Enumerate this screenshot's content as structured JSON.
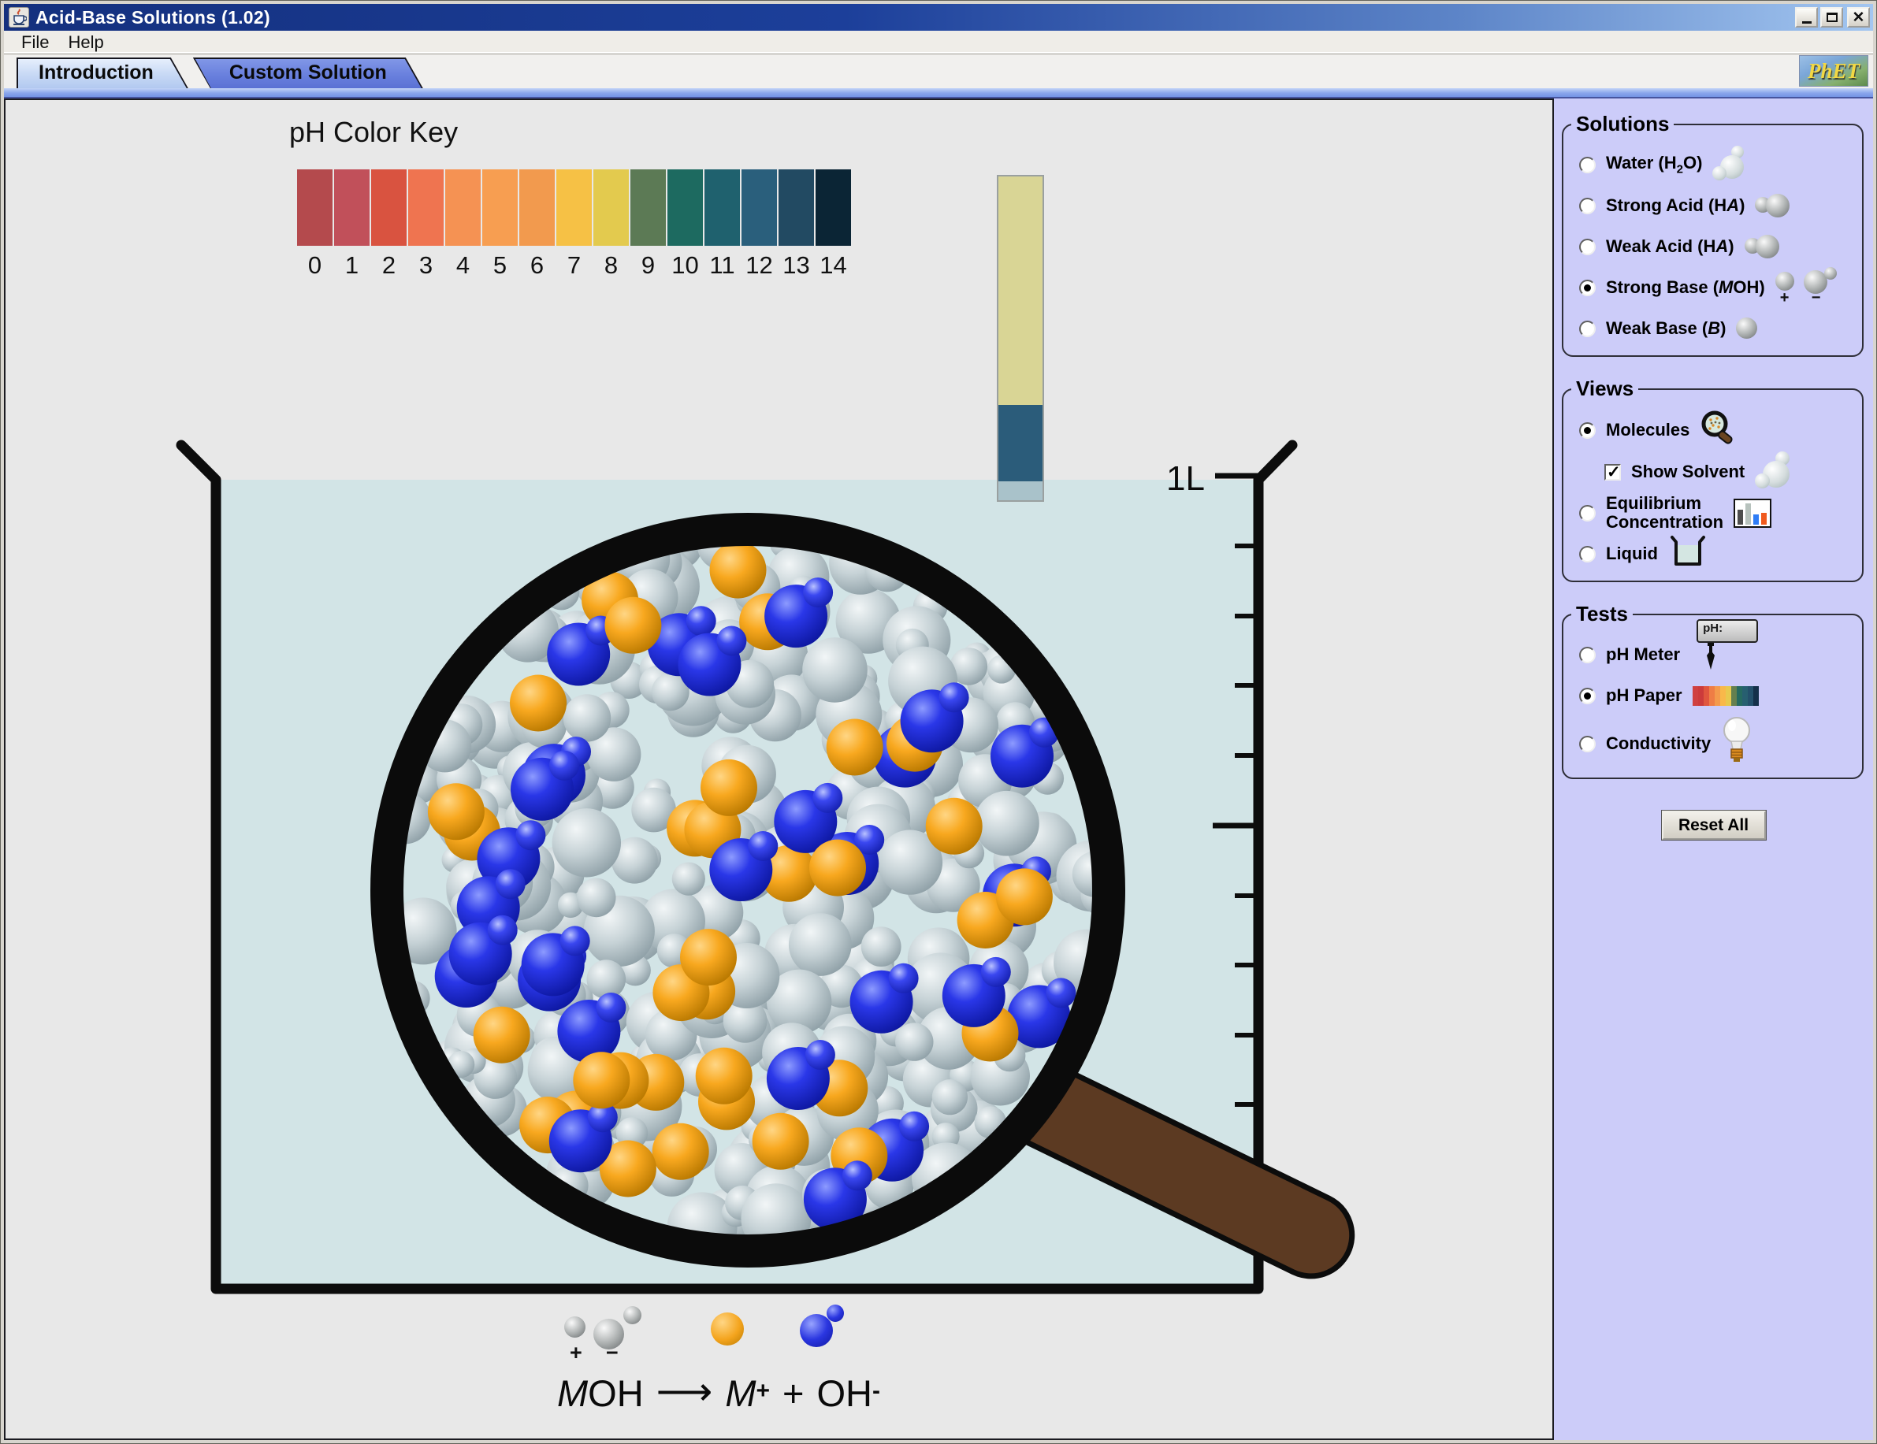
{
  "window": {
    "title": "Acid-Base Solutions (1.02)",
    "controls": [
      {
        "id": "minimize",
        "label": "minimize"
      },
      {
        "id": "maximize",
        "label": "maximize"
      },
      {
        "id": "close",
        "label": "close"
      }
    ]
  },
  "menu": {
    "items": [
      "File",
      "Help"
    ]
  },
  "tabs": [
    {
      "label": "Introduction",
      "active": true
    },
    {
      "label": "Custom Solution",
      "active": false
    }
  ],
  "logo": {
    "text": "PhET"
  },
  "ph_color_key": {
    "title": "pH Color Key",
    "entries": [
      {
        "value": "0",
        "color": "#b44a4d"
      },
      {
        "value": "1",
        "color": "#c1505a"
      },
      {
        "value": "2",
        "color": "#d95340"
      },
      {
        "value": "3",
        "color": "#ef7450"
      },
      {
        "value": "4",
        "color": "#f59253"
      },
      {
        "value": "5",
        "color": "#f79e51"
      },
      {
        "value": "6",
        "color": "#f29a4e"
      },
      {
        "value": "7",
        "color": "#f6c145"
      },
      {
        "value": "8",
        "color": "#e3ca4e"
      },
      {
        "value": "9",
        "color": "#5c7a55"
      },
      {
        "value": "10",
        "color": "#1d6a60"
      },
      {
        "value": "11",
        "color": "#1f616e"
      },
      {
        "value": "12",
        "color": "#2a5f7c"
      },
      {
        "value": "13",
        "color": "#224a62"
      },
      {
        "value": "14",
        "color": "#0b2535"
      }
    ]
  },
  "ph_paper": {
    "blank_color": "#d9d595",
    "dipped_color": "#2b5c7a",
    "submerged_color": "#a9c2ca"
  },
  "beaker": {
    "volume_label": "1L",
    "water_color": "#d2e4e6"
  },
  "magnifier": {
    "solvent_molecule_count": 330,
    "hydroxide_count": 27,
    "metal_ion_count": 34,
    "solvent_color": "#c8d4d8",
    "hydroxide_color": "#2a36e0",
    "metal_ion_color": "#f4a41d",
    "ring_color": "#0b0b0b",
    "handle_color": "#5c3a22"
  },
  "legend": {
    "plus_sign": "+",
    "minus_sign": "−"
  },
  "equation": {
    "reactant": [
      {
        "t": "M",
        "s": "i"
      },
      {
        "t": "OH"
      }
    ],
    "arrow": "⟶",
    "product1": [
      {
        "t": "M",
        "s": "i"
      },
      {
        "t": "+",
        "s": "sup"
      }
    ],
    "plus": "+",
    "product2": [
      {
        "t": "OH"
      },
      {
        "t": "-",
        "s": "sup"
      }
    ]
  },
  "sidebar": {
    "solutions": {
      "title": "Solutions",
      "options": [
        {
          "id": "water",
          "parts": [
            {
              "t": "Water (H"
            },
            {
              "t": "2",
              "s": "sub"
            },
            {
              "t": "O)"
            }
          ],
          "selected": false,
          "icon": "water-molecule"
        },
        {
          "id": "strong-acid",
          "parts": [
            {
              "t": "Strong Acid (H"
            },
            {
              "t": "A",
              "s": "i"
            },
            {
              "t": ")"
            }
          ],
          "selected": false,
          "icon": "acid-molecule"
        },
        {
          "id": "weak-acid",
          "parts": [
            {
              "t": "Weak Acid (H"
            },
            {
              "t": "A",
              "s": "i"
            },
            {
              "t": ")"
            }
          ],
          "selected": false,
          "icon": "acid-molecule"
        },
        {
          "id": "strong-base",
          "parts": [
            {
              "t": "Strong Base ("
            },
            {
              "t": "M",
              "s": "i"
            },
            {
              "t": "OH)"
            }
          ],
          "selected": true,
          "icon": "base-molecules"
        },
        {
          "id": "weak-base",
          "parts": [
            {
              "t": "Weak Base ("
            },
            {
              "t": "B",
              "s": "i"
            },
            {
              "t": ")"
            }
          ],
          "selected": false,
          "icon": "single-molecule"
        }
      ]
    },
    "views": {
      "title": "Views",
      "options": [
        {
          "id": "molecules",
          "parts": [
            {
              "t": "Molecules"
            }
          ],
          "selected": true,
          "icon": "magnifier"
        },
        {
          "id": "show-solvent",
          "control": "checkbox",
          "checked": true,
          "indent": true,
          "parts": [
            {
              "t": "Show Solvent"
            }
          ],
          "icon": "solvent-molecule"
        },
        {
          "id": "equilibrium-concentration",
          "parts": [
            {
              "t": "Equilibrium"
            },
            {
              "br": true
            },
            {
              "t": "Concentration"
            }
          ],
          "selected": false,
          "icon": "bar-chart"
        },
        {
          "id": "liquid",
          "parts": [
            {
              "t": "Liquid"
            }
          ],
          "selected": false,
          "icon": "liquid-beaker"
        }
      ]
    },
    "tests": {
      "title": "Tests",
      "meter_label": "pH:",
      "options": [
        {
          "id": "ph-meter",
          "parts": [
            {
              "t": "pH Meter"
            }
          ],
          "selected": false,
          "icon": "ph-meter"
        },
        {
          "id": "ph-paper",
          "parts": [
            {
              "t": "pH Paper"
            }
          ],
          "selected": true,
          "icon": "ph-paper"
        },
        {
          "id": "conductivity",
          "parts": [
            {
              "t": "Conductivity"
            }
          ],
          "selected": false,
          "icon": "light-bulb"
        }
      ]
    },
    "reset_button": "Reset All"
  }
}
